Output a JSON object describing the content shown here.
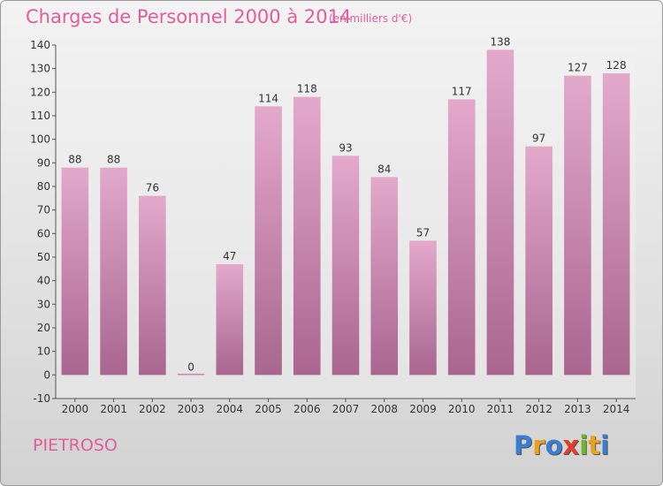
{
  "header": {
    "title": "Charges de Personnel 2000 à 2014",
    "subtitle": "(en milliers d'€)"
  },
  "footer": {
    "commune": "PIETROSO",
    "logo_text": "Proxiti",
    "logo_colors": [
      "#3a7dd1",
      "#e8a21f",
      "#3a7dd1",
      "#e23b2f",
      "#6fb52c",
      "#e8a21f",
      "#3a7dd1"
    ]
  },
  "colors": {
    "accent": "#e25d9a",
    "bar_top": "#e3a9cb",
    "bar_bottom": "#a9668f"
  },
  "chart_data": {
    "type": "bar",
    "title": "Charges de Personnel 2000 à 2014",
    "subtitle": "(en milliers d'€)",
    "xlabel": "",
    "ylabel": "",
    "categories": [
      "2000",
      "2001",
      "2002",
      "2003",
      "2004",
      "2005",
      "2006",
      "2007",
      "2008",
      "2009",
      "2010",
      "2011",
      "2012",
      "2013",
      "2014"
    ],
    "values": [
      88,
      88,
      76,
      0,
      47,
      114,
      118,
      93,
      84,
      57,
      117,
      138,
      97,
      127,
      128
    ],
    "ylim": [
      -10,
      140
    ],
    "yticks": [
      -10,
      0,
      10,
      20,
      30,
      40,
      50,
      60,
      70,
      80,
      90,
      100,
      110,
      120,
      130,
      140
    ],
    "grid": false,
    "data_labels": true
  }
}
